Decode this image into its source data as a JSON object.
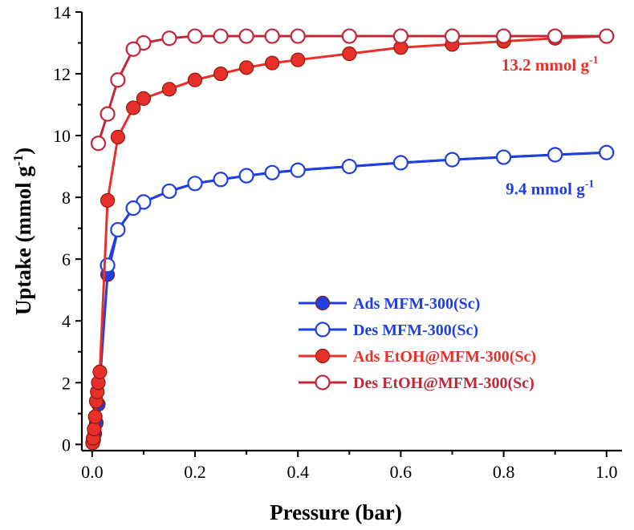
{
  "chart_data": {
    "type": "line",
    "xlabel": "Pressure (bar)",
    "ylabel": "Uptake (mmol g",
    "ylabel_sup": "-1",
    "ylabel_end": ")",
    "xlim": [
      -0.02,
      1.03
    ],
    "ylim": [
      -0.2,
      14
    ],
    "x_ticks": [
      0.0,
      0.2,
      0.4,
      0.6,
      0.8,
      1.0
    ],
    "x_tick_labels": [
      "0.0",
      "0.2",
      "0.4",
      "0.6",
      "0.8",
      "1.0"
    ],
    "y_ticks": [
      0,
      2,
      4,
      6,
      8,
      10,
      12,
      14
    ],
    "y_tick_labels": [
      "0",
      "2",
      "4",
      "6",
      "8",
      "10",
      "12",
      "14"
    ],
    "grid": false,
    "legend_position": "bottom-right",
    "series": [
      {
        "name": "Ads MFM-300(Sc)",
        "color": "#1f3fe0",
        "marker": "filled-circle",
        "x": [
          0.001,
          0.003,
          0.005,
          0.008,
          0.012,
          0.03,
          0.05,
          0.08,
          0.1,
          0.15,
          0.2,
          0.25,
          0.3,
          0.35,
          0.4,
          0.5,
          0.6,
          0.7,
          0.8,
          0.9,
          1.0
        ],
        "y": [
          0.05,
          0.15,
          0.35,
          0.7,
          1.3,
          5.5,
          6.95,
          7.65,
          7.85,
          8.2,
          8.45,
          8.58,
          8.7,
          8.8,
          8.88,
          9.0,
          9.12,
          9.22,
          9.3,
          9.38,
          9.45
        ]
      },
      {
        "name": "Des MFM-300(Sc)",
        "color": "#1f3fe0",
        "marker": "open-circle",
        "x": [
          1.0,
          0.9,
          0.8,
          0.7,
          0.6,
          0.5,
          0.4,
          0.35,
          0.3,
          0.25,
          0.2,
          0.15,
          0.1,
          0.08,
          0.05,
          0.03
        ],
        "y": [
          9.45,
          9.38,
          9.3,
          9.22,
          9.12,
          9.0,
          8.88,
          8.8,
          8.7,
          8.58,
          8.45,
          8.2,
          7.85,
          7.65,
          6.95,
          5.8
        ]
      },
      {
        "name": "Ads EtOH@MFM-300(Sc)",
        "color": "#e8302a",
        "marker": "filled-circle",
        "x": [
          0.001,
          0.002,
          0.004,
          0.006,
          0.008,
          0.01,
          0.012,
          0.015,
          0.03,
          0.05,
          0.08,
          0.1,
          0.15,
          0.2,
          0.25,
          0.3,
          0.35,
          0.4,
          0.5,
          0.6,
          0.7,
          0.8,
          0.9,
          1.0
        ],
        "y": [
          0.05,
          0.2,
          0.5,
          0.9,
          1.4,
          1.7,
          2.0,
          2.35,
          7.9,
          9.95,
          10.9,
          11.2,
          11.5,
          11.8,
          12.0,
          12.2,
          12.35,
          12.45,
          12.65,
          12.85,
          12.95,
          13.05,
          13.15,
          13.22
        ]
      },
      {
        "name": "Des EtOH@MFM-300(Sc)",
        "color": "#c0283a",
        "marker": "open-circle",
        "x": [
          1.0,
          0.9,
          0.8,
          0.7,
          0.6,
          0.5,
          0.4,
          0.35,
          0.3,
          0.25,
          0.2,
          0.15,
          0.1,
          0.08,
          0.05,
          0.03,
          0.012
        ],
        "y": [
          13.22,
          13.22,
          13.22,
          13.22,
          13.22,
          13.22,
          13.22,
          13.22,
          13.22,
          13.22,
          13.22,
          13.15,
          13.0,
          12.8,
          11.8,
          10.7,
          9.75
        ]
      }
    ],
    "annotations": [
      {
        "text": "13.2 mmol g",
        "sup": "-1",
        "x": 0.89,
        "y": 12.1,
        "color": "#e8302a"
      },
      {
        "text": "9.4 mmol g",
        "sup": "-1",
        "x": 0.89,
        "y": 8.1,
        "color": "#1f3fe0"
      }
    ]
  }
}
